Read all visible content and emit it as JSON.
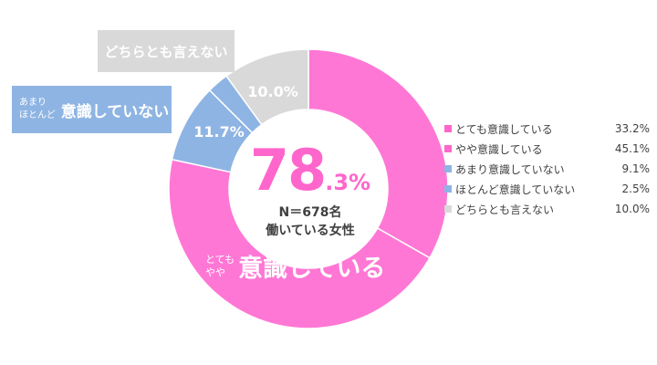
{
  "chart_data": {
    "type": "pie",
    "slices": [
      {
        "label": "とても意識している",
        "value": 33.2,
        "color": "#ff77d5"
      },
      {
        "label": "やや意識している",
        "value": 45.1,
        "color": "#ff77d5"
      },
      {
        "label": "あまり意識していない",
        "value": 9.1,
        "color": "#8eb4e3"
      },
      {
        "label": "ほとんど意識していない",
        "value": 2.5,
        "color": "#8eb4e3"
      },
      {
        "label": "どちらとも言えない",
        "value": 10.0,
        "color": "#d9d9d9"
      }
    ],
    "legend": {
      "items": [
        {
          "label": "とても意識している",
          "value_text": "33.2%",
          "color": "#ff66cc"
        },
        {
          "label": "やや意識している",
          "value_text": "45.1%",
          "color": "#ff66cc"
        },
        {
          "label": "あまり意識していない",
          "value_text": "9.1%",
          "color": "#8eb4e3"
        },
        {
          "label": "ほとんど意識していない",
          "value_text": "2.5%",
          "color": "#8eb4e3"
        },
        {
          "label": "どちらとも言えない",
          "value_text": "10.0%",
          "color": "#d9d9d9"
        }
      ],
      "placement": "right"
    },
    "group_labels": {
      "neutral_pct": "10.0%",
      "not_aware_pct": "11.7%",
      "neutral_callout": "どちらとも言えない",
      "not_aware_small_1": "あまり",
      "not_aware_small_2": "ほとんど",
      "not_aware_big": "意識していない",
      "aware_small_1": "とても",
      "aware_small_2": "やや",
      "aware_big": "意識している"
    },
    "center": {
      "pct_int": "78",
      "pct_dec": ".3%",
      "sample": "N＝678名",
      "population": "働いている女性"
    },
    "colors": {
      "aware": "#ff77d5",
      "not_aware": "#8eb4e3",
      "neutral": "#d9d9d9",
      "accent_text": "#ff66cc"
    }
  }
}
